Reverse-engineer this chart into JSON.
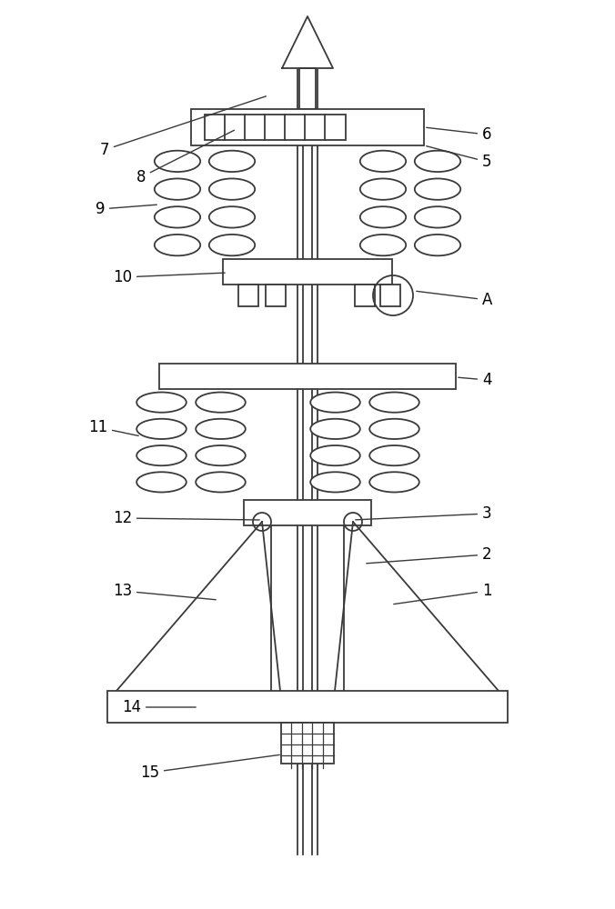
{
  "bg_color": "#ffffff",
  "line_color": "#3a3a3a",
  "lw": 1.3,
  "fig_width": 6.76,
  "fig_height": 10.0,
  "font_size": 12
}
